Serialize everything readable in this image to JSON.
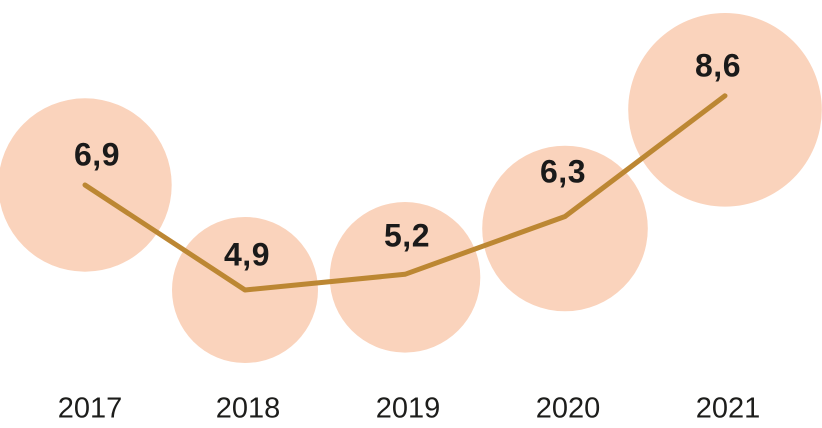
{
  "chart_data": {
    "type": "line",
    "subtype": "bubble-line",
    "title": "",
    "xlabel": "",
    "ylabel": "",
    "grid": false,
    "legend": false,
    "categories": [
      "2017",
      "2018",
      "2019",
      "2020",
      "2021"
    ],
    "values": [
      6.9,
      4.9,
      5.2,
      6.3,
      8.6
    ],
    "value_labels": [
      "6,9",
      "4,9",
      "5,2",
      "6,3",
      "8,6"
    ],
    "decimal_separator": ",",
    "colors": {
      "bubble_fill": "#FAD3BC",
      "line": "#BC8733",
      "value_label": "#1A1A1A",
      "axis_label": "#1D1D1B"
    },
    "layout_hints": {
      "bubble_radius_scaling": "sqrt(value)",
      "x_axis_position": "bottom",
      "value_labels_inside_bubbles": true,
      "value_range_shown": [
        4.9,
        8.6
      ]
    }
  }
}
